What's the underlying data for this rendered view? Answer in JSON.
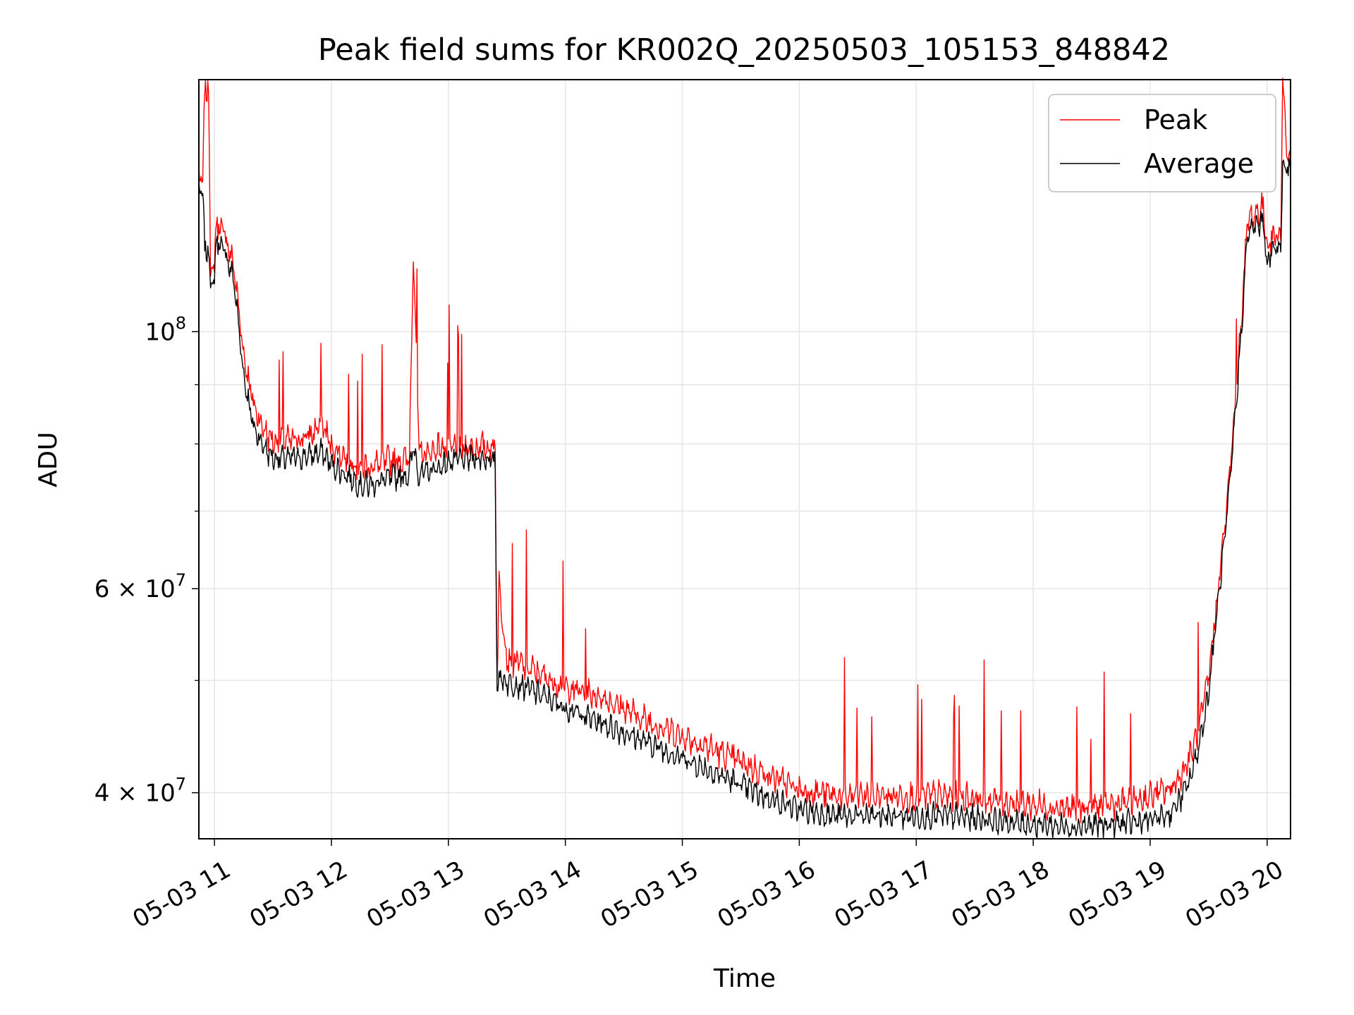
{
  "chart_data": {
    "type": "line",
    "title": "Peak field sums for KR002Q_20250503_105153_848842",
    "xlabel": "Time",
    "ylabel": "ADU",
    "y_scale": "log",
    "grid": true,
    "legend_position": "top-right",
    "x_range": [
      "05-03 10:52",
      "05-03 20:12"
    ],
    "ylim": [
      36500000,
      165000000
    ],
    "x_ticks": [
      "05-03 11",
      "05-03 12",
      "05-03 13",
      "05-03 14",
      "05-03 15",
      "05-03 16",
      "05-03 17",
      "05-03 18",
      "05-03 19",
      "05-03 20"
    ],
    "y_ticks": [
      {
        "value": 40000000,
        "mantissa": "4",
        "exponent": "7"
      },
      {
        "value": 60000000,
        "mantissa": "6",
        "exponent": "7"
      },
      {
        "value": 100000000,
        "base": "10",
        "exponent": "8"
      }
    ],
    "y_minor_ticks": [
      50000000,
      70000000,
      80000000,
      90000000
    ],
    "series": [
      {
        "name": "Peak",
        "color": "#ff0000",
        "x": [
          "05-03 10:52",
          "05-03 10:54",
          "05-03 10:55",
          "05-03 10:57",
          "05-03 10:58",
          "05-03 11:00",
          "05-03 11:01",
          "05-03 11:03",
          "05-03 11:05",
          "05-03 11:10",
          "05-03 11:15",
          "05-03 11:20",
          "05-03 11:25",
          "05-03 11:30",
          "05-03 11:40",
          "05-03 11:50",
          "05-03 11:55",
          "05-03 12:00",
          "05-03 12:10",
          "05-03 12:15",
          "05-03 12:20",
          "05-03 12:30",
          "05-03 12:40",
          "05-03 12:42",
          "05-03 12:45",
          "05-03 12:50",
          "05-03 12:55",
          "05-03 13:00",
          "05-03 13:10",
          "05-03 13:20",
          "05-03 13:24",
          "05-03 13:25",
          "05-03 13:26",
          "05-03 13:30",
          "05-03 13:40",
          "05-03 13:50",
          "05-03 14:00",
          "05-03 14:20",
          "05-03 14:40",
          "05-03 15:00",
          "05-03 15:20",
          "05-03 15:40",
          "05-03 16:00",
          "05-03 16:20",
          "05-03 16:50",
          "05-03 17:20",
          "05-03 17:50",
          "05-03 18:20",
          "05-03 18:50",
          "05-03 19:00",
          "05-03 19:10",
          "05-03 19:15",
          "05-03 19:20",
          "05-03 19:25",
          "05-03 19:30",
          "05-03 19:35",
          "05-03 19:40",
          "05-03 19:45",
          "05-03 19:50",
          "05-03 19:55",
          "05-03 19:58",
          "05-03 20:00",
          "05-03 20:03",
          "05-03 20:07",
          "05-03 20:08",
          "05-03 20:10",
          "05-03 20:12"
        ],
        "values": [
          135000000,
          134000000,
          160000000,
          162000000,
          112000000,
          113000000,
          124000000,
          122000000,
          121000000,
          113000000,
          95000000,
          86000000,
          82000000,
          80000000,
          80000000,
          81000000,
          83000000,
          79000000,
          77000000,
          76000000,
          76000000,
          77000000,
          77000000,
          118000000,
          78000000,
          78000000,
          79000000,
          79000000,
          79000000,
          79000000,
          79000000,
          50000000,
          60000000,
          52000000,
          51000000,
          50000000,
          49000000,
          48000000,
          46000000,
          44500000,
          43000000,
          41500000,
          40000000,
          39500000,
          39500000,
          39500000,
          39000000,
          38500000,
          39000000,
          39500000,
          40000000,
          41000000,
          42500000,
          45000000,
          50000000,
          60000000,
          72000000,
          92000000,
          124000000,
          126000000,
          127000000,
          118000000,
          120000000,
          121000000,
          166000000,
          142000000,
          140000000
        ]
      },
      {
        "name": "Average",
        "color": "#000000",
        "x": [
          "05-03 10:52",
          "05-03 10:54",
          "05-03 10:55",
          "05-03 10:57",
          "05-03 10:58",
          "05-03 11:00",
          "05-03 11:01",
          "05-03 11:03",
          "05-03 11:05",
          "05-03 11:10",
          "05-03 11:15",
          "05-03 11:20",
          "05-03 11:25",
          "05-03 11:30",
          "05-03 11:40",
          "05-03 11:50",
          "05-03 11:55",
          "05-03 12:00",
          "05-03 12:10",
          "05-03 12:15",
          "05-03 12:20",
          "05-03 12:30",
          "05-03 12:40",
          "05-03 12:42",
          "05-03 12:45",
          "05-03 12:50",
          "05-03 12:55",
          "05-03 13:00",
          "05-03 13:10",
          "05-03 13:20",
          "05-03 13:24",
          "05-03 13:25",
          "05-03 13:26",
          "05-03 13:30",
          "05-03 13:40",
          "05-03 13:50",
          "05-03 14:00",
          "05-03 14:20",
          "05-03 14:40",
          "05-03 15:00",
          "05-03 15:20",
          "05-03 15:40",
          "05-03 16:00",
          "05-03 16:20",
          "05-03 16:50",
          "05-03 17:20",
          "05-03 17:50",
          "05-03 18:20",
          "05-03 18:50",
          "05-03 19:00",
          "05-03 19:10",
          "05-03 19:15",
          "05-03 19:20",
          "05-03 19:25",
          "05-03 19:30",
          "05-03 19:35",
          "05-03 19:40",
          "05-03 19:45",
          "05-03 19:50",
          "05-03 19:55",
          "05-03 19:58",
          "05-03 20:00",
          "05-03 20:03",
          "05-03 20:07",
          "05-03 20:08",
          "05-03 20:10",
          "05-03 20:12"
        ],
        "values": [
          133000000,
          132000000,
          118000000,
          118000000,
          110000000,
          111000000,
          121000000,
          119000000,
          118000000,
          111000000,
          92000000,
          83000000,
          80000000,
          78000000,
          78000000,
          78500000,
          79000000,
          77000000,
          75000000,
          74000000,
          74000000,
          75000000,
          75500000,
          80000000,
          75500000,
          76000000,
          76500000,
          77500000,
          78000000,
          78000000,
          77000000,
          49500000,
          50500000,
          50000000,
          49500000,
          48500000,
          47500000,
          46000000,
          44500000,
          43000000,
          41500000,
          40000000,
          38800000,
          38300000,
          38300000,
          38300000,
          37800000,
          37500000,
          37800000,
          38000000,
          38500000,
          39500000,
          41000000,
          44000000,
          49000000,
          59000000,
          71000000,
          91000000,
          122000000,
          124000000,
          125000000,
          115000000,
          118000000,
          119000000,
          140000000,
          139000000,
          138000000
        ]
      }
    ]
  }
}
